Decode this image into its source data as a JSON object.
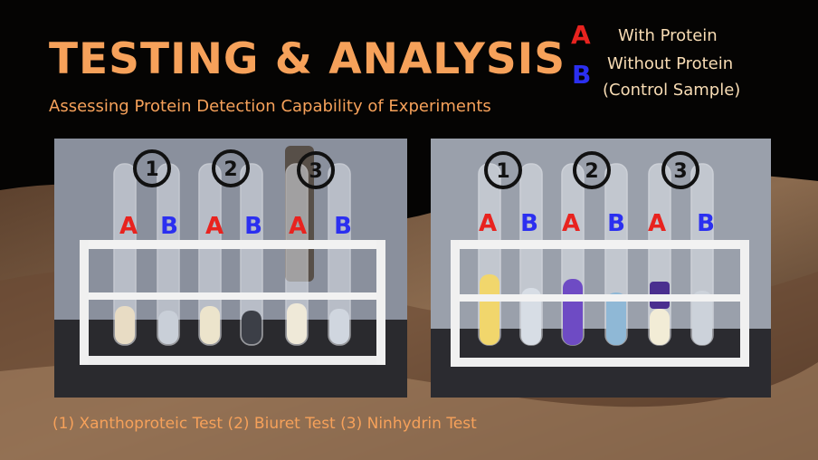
{
  "slide": {
    "title": "TESTING & ANALYSIS",
    "subtitle": "Assessing Protein Detection Capability of Experiments",
    "caption": "(1) Xanthoproteic Test  (2) Biuret Test  (3) Ninhydrin Test"
  },
  "legend": {
    "a_letter": "A",
    "a_text": "With Protein",
    "b_letter": "B",
    "b_text_line1": "Without Protein",
    "b_text_line2": "(Control Sample)"
  },
  "colors": {
    "accent": "#f6a15a",
    "letter_a": "#e8231f",
    "letter_b": "#2b2ff0"
  },
  "photo_before": {
    "numbers": [
      "1",
      "2",
      "3"
    ],
    "tube_labels": [
      "A",
      "B",
      "A",
      "B",
      "A",
      "B"
    ]
  },
  "photo_after": {
    "numbers": [
      "1",
      "2",
      "3"
    ],
    "tube_labels": [
      "A",
      "B",
      "A",
      "B",
      "A",
      "B"
    ]
  }
}
